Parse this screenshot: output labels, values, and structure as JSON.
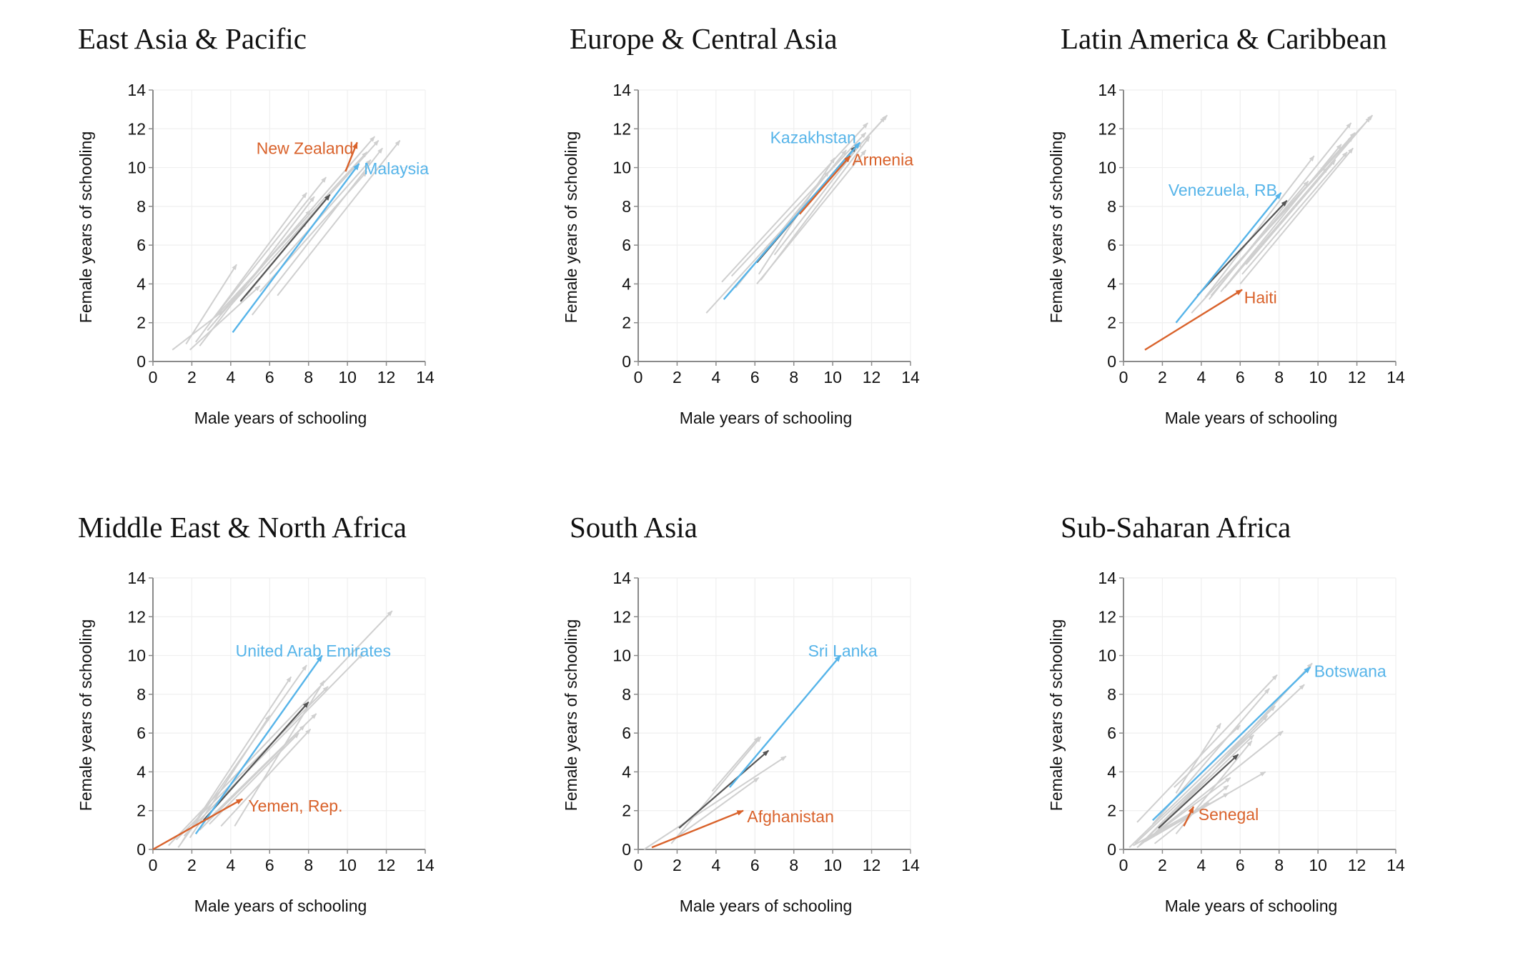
{
  "colors": {
    "background": "#ffffff",
    "other_countries": "#cfcfcf",
    "region_average": "#555555",
    "highlight_best": "#56B4E9",
    "highlight_worst": "#D9622B",
    "grid": "#efefef",
    "axis": "#8a8a8a"
  },
  "chart_data": [
    {
      "type": "arrow",
      "title": "East Asia & Pacific",
      "xlabel": "Male years of schooling",
      "ylabel": "Female years of schooling",
      "xlim": [
        0,
        14
      ],
      "ylim": [
        0,
        14
      ],
      "xticks": [
        "0",
        "2",
        "4",
        "6",
        "8",
        "10",
        "12",
        "14"
      ],
      "yticks": [
        "0",
        "2",
        "4",
        "6",
        "8",
        "10",
        "12",
        "14"
      ],
      "grid": true,
      "region_average": {
        "from": [
          4.5,
          3.1
        ],
        "to": [
          9.1,
          8.6
        ]
      },
      "highlights": [
        {
          "name": "New Zealand",
          "role": "worst",
          "from": [
            9.9,
            9.8
          ],
          "to": [
            10.5,
            11.3
          ],
          "label_anchor": "end",
          "label_at": [
            10.3,
            11.0
          ]
        },
        {
          "name": "Malaysia",
          "role": "best",
          "from": [
            4.1,
            1.5
          ],
          "to": [
            10.6,
            10.2
          ],
          "label_anchor": "start",
          "label_at": [
            10.85,
            9.95
          ]
        }
      ],
      "others": [
        [
          [
            1.0,
            0.6
          ],
          [
            3.6,
            2.6
          ]
        ],
        [
          [
            1.7,
            0.9
          ],
          [
            4.3,
            5.0
          ]
        ],
        [
          [
            1.9,
            0.6
          ],
          [
            5.5,
            3.9
          ]
        ],
        [
          [
            2.2,
            1.0
          ],
          [
            7.9,
            8.7
          ]
        ],
        [
          [
            2.4,
            0.8
          ],
          [
            8.3,
            8.5
          ]
        ],
        [
          [
            3.0,
            2.1
          ],
          [
            8.9,
            9.5
          ]
        ],
        [
          [
            3.3,
            2.4
          ],
          [
            11.0,
            10.8
          ]
        ],
        [
          [
            3.6,
            2.6
          ],
          [
            11.4,
            11.6
          ]
        ],
        [
          [
            4.0,
            2.9
          ],
          [
            11.6,
            11.4
          ]
        ],
        [
          [
            5.1,
            2.4
          ],
          [
            11.8,
            11.0
          ]
        ],
        [
          [
            6.4,
            3.4
          ],
          [
            12.7,
            11.4
          ]
        ],
        [
          [
            5.5,
            3.6
          ],
          [
            11.0,
            9.8
          ]
        ],
        [
          [
            4.8,
            3.4
          ],
          [
            7.9,
            7.2
          ]
        ],
        [
          [
            6.0,
            4.5
          ],
          [
            11.2,
            10.4
          ]
        ],
        [
          [
            2.8,
            1.6
          ],
          [
            8.1,
            7.8
          ]
        ]
      ]
    },
    {
      "type": "arrow",
      "title": "Europe & Central Asia",
      "xlabel": "Male years of schooling",
      "ylabel": "Female years of schooling",
      "xlim": [
        0,
        14
      ],
      "ylim": [
        0,
        14
      ],
      "xticks": [
        "0",
        "2",
        "4",
        "6",
        "8",
        "10",
        "12",
        "14"
      ],
      "yticks": [
        "0",
        "2",
        "4",
        "6",
        "8",
        "10",
        "12",
        "14"
      ],
      "grid": true,
      "region_average": {
        "from": [
          6.1,
          5.1
        ],
        "to": [
          11.2,
          11.1
        ]
      },
      "highlights": [
        {
          "name": "Kazakhstan",
          "role": "best",
          "from": [
            4.4,
            3.2
          ],
          "to": [
            11.4,
            11.3
          ],
          "label_anchor": "end",
          "label_at": [
            11.2,
            11.55
          ]
        },
        {
          "name": "Armenia",
          "role": "worst",
          "from": [
            8.3,
            7.6
          ],
          "to": [
            10.9,
            10.6
          ],
          "label_anchor": "start",
          "label_at": [
            11.0,
            10.4
          ]
        }
      ],
      "others": [
        [
          [
            3.5,
            2.5
          ],
          [
            12.8,
            12.7
          ]
        ],
        [
          [
            4.3,
            4.1
          ],
          [
            11.8,
            12.3
          ]
        ],
        [
          [
            4.8,
            4.4
          ],
          [
            11.7,
            11.8
          ]
        ],
        [
          [
            6.1,
            4.0
          ],
          [
            11.7,
            10.9
          ]
        ],
        [
          [
            6.2,
            4.5
          ],
          [
            10.1,
            10.5
          ]
        ],
        [
          [
            6.5,
            5.8
          ],
          [
            12.7,
            12.6
          ]
        ],
        [
          [
            5.0,
            3.8
          ],
          [
            10.7,
            10.9
          ]
        ],
        [
          [
            7.0,
            5.5
          ],
          [
            11.5,
            11.3
          ]
        ],
        [
          [
            8.0,
            7.5
          ],
          [
            9.8,
            9.8
          ]
        ],
        [
          [
            6.3,
            4.2
          ],
          [
            11.9,
            11.6
          ]
        ]
      ]
    },
    {
      "type": "arrow",
      "title": "Latin America & Caribbean",
      "xlabel": "Male years of schooling",
      "ylabel": "Female years of schooling",
      "xlim": [
        0,
        14
      ],
      "ylim": [
        0,
        14
      ],
      "xticks": [
        "0",
        "2",
        "4",
        "6",
        "8",
        "10",
        "12",
        "14"
      ],
      "yticks": [
        "0",
        "2",
        "4",
        "6",
        "8",
        "10",
        "12",
        "14"
      ],
      "grid": true,
      "region_average": {
        "from": [
          3.8,
          3.4
        ],
        "to": [
          8.4,
          8.3
        ]
      },
      "highlights": [
        {
          "name": "Venezuela, RB",
          "role": "best",
          "from": [
            2.7,
            2.0
          ],
          "to": [
            8.1,
            8.7
          ],
          "label_anchor": "end",
          "label_at": [
            7.9,
            8.85
          ]
        },
        {
          "name": "Haiti",
          "role": "worst",
          "from": [
            1.1,
            0.6
          ],
          "to": [
            6.1,
            3.7
          ],
          "label_anchor": "start",
          "label_at": [
            6.2,
            3.3
          ]
        }
      ],
      "others": [
        [
          [
            3.5,
            2.5
          ],
          [
            12.8,
            12.7
          ]
        ],
        [
          [
            4.4,
            3.2
          ],
          [
            11.7,
            12.3
          ]
        ],
        [
          [
            6.0,
            4.0
          ],
          [
            11.8,
            11.0
          ]
        ],
        [
          [
            6.1,
            4.5
          ],
          [
            11.5,
            10.8
          ]
        ],
        [
          [
            4.2,
            3.3
          ],
          [
            9.8,
            10.6
          ]
        ],
        [
          [
            5.2,
            3.8
          ],
          [
            12.7,
            12.6
          ]
        ],
        [
          [
            4.8,
            3.9
          ],
          [
            11.9,
            11.8
          ]
        ],
        [
          [
            5.5,
            4.2
          ],
          [
            11.2,
            11.2
          ]
        ],
        [
          [
            6.3,
            5.0
          ],
          [
            10.9,
            10.4
          ]
        ],
        [
          [
            5.0,
            3.6
          ],
          [
            10.5,
            10.0
          ]
        ],
        [
          [
            6.5,
            5.8
          ],
          [
            11.8,
            11.6
          ]
        ],
        [
          [
            4.5,
            3.4
          ],
          [
            9.5,
            9.3
          ]
        ]
      ]
    },
    {
      "type": "arrow",
      "title": "Middle East & North Africa",
      "xlabel": "Male years of schooling",
      "ylabel": "Female years of schooling",
      "xlim": [
        0,
        14
      ],
      "ylim": [
        0,
        14
      ],
      "xticks": [
        "0",
        "2",
        "4",
        "6",
        "8",
        "10",
        "12",
        "14"
      ],
      "yticks": [
        "0",
        "2",
        "4",
        "6",
        "8",
        "10",
        "12",
        "14"
      ],
      "grid": true,
      "region_average": {
        "from": [
          2.6,
          1.5
        ],
        "to": [
          8.0,
          7.6
        ]
      },
      "highlights": [
        {
          "name": "United Arab Emirates",
          "role": "best",
          "from": [
            2.2,
            0.8
          ],
          "to": [
            8.7,
            10.0
          ],
          "label_anchor": "start",
          "label_at": [
            4.25,
            10.25
          ]
        },
        {
          "name": "Yemen, Rep.",
          "role": "worst",
          "from": [
            0.0,
            0.0
          ],
          "to": [
            4.6,
            2.6
          ],
          "label_anchor": "start",
          "label_at": [
            4.9,
            2.25
          ]
        }
      ],
      "others": [
        [
          [
            0.8,
            0.2
          ],
          [
            12.3,
            12.3
          ]
        ],
        [
          [
            1.3,
            0.1
          ],
          [
            7.9,
            9.5
          ]
        ],
        [
          [
            1.9,
            0.6
          ],
          [
            6.0,
            6.9
          ]
        ],
        [
          [
            1.5,
            0.4
          ],
          [
            7.1,
            8.9
          ]
        ],
        [
          [
            3.5,
            1.2
          ],
          [
            8.1,
            6.2
          ]
        ],
        [
          [
            4.2,
            1.2
          ],
          [
            8.8,
            8.7
          ]
        ],
        [
          [
            2.4,
            1.0
          ],
          [
            7.8,
            6.4
          ]
        ],
        [
          [
            2.9,
            1.3
          ],
          [
            7.5,
            6.0
          ]
        ],
        [
          [
            1.2,
            0.5
          ],
          [
            9.0,
            8.4
          ]
        ],
        [
          [
            1.6,
            0.7
          ],
          [
            10.8,
            10.1
          ]
        ],
        [
          [
            2.8,
            1.5
          ],
          [
            8.4,
            7.0
          ]
        ]
      ]
    },
    {
      "type": "arrow",
      "title": "South Asia",
      "xlabel": "Male years of schooling",
      "ylabel": "Female years of schooling",
      "xlim": [
        0,
        14
      ],
      "ylim": [
        0,
        14
      ],
      "xticks": [
        "0",
        "2",
        "4",
        "6",
        "8",
        "10",
        "12",
        "14"
      ],
      "yticks": [
        "0",
        "2",
        "4",
        "6",
        "8",
        "10",
        "12",
        "14"
      ],
      "grid": true,
      "region_average": {
        "from": [
          2.1,
          1.1
        ],
        "to": [
          6.7,
          5.1
        ]
      },
      "highlights": [
        {
          "name": "Sri Lanka",
          "role": "best",
          "from": [
            4.7,
            3.2
          ],
          "to": [
            10.4,
            10.0
          ],
          "label_anchor": "end",
          "label_at": [
            12.3,
            10.25
          ]
        },
        {
          "name": "Afghanistan",
          "role": "worst",
          "from": [
            0.7,
            0.1
          ],
          "to": [
            5.4,
            2.0
          ],
          "label_anchor": "start",
          "label_at": [
            5.6,
            1.7
          ]
        }
      ],
      "others": [
        [
          [
            0.3,
            0.0
          ],
          [
            7.6,
            4.8
          ]
        ],
        [
          [
            1.7,
            0.3
          ],
          [
            6.3,
            5.8
          ]
        ],
        [
          [
            3.8,
            3.0
          ],
          [
            6.2,
            5.8
          ]
        ],
        [
          [
            1.8,
            0.5
          ],
          [
            6.2,
            3.7
          ]
        ]
      ]
    },
    {
      "type": "arrow",
      "title": "Sub-Saharan Africa",
      "xlabel": "Male years of schooling",
      "ylabel": "Female years of schooling",
      "xlim": [
        0,
        14
      ],
      "ylim": [
        0,
        14
      ],
      "xticks": [
        "0",
        "2",
        "4",
        "6",
        "8",
        "10",
        "12",
        "14"
      ],
      "yticks": [
        "0",
        "2",
        "4",
        "6",
        "8",
        "10",
        "12",
        "14"
      ],
      "grid": true,
      "region_average": {
        "from": [
          1.8,
          1.1
        ],
        "to": [
          5.9,
          4.9
        ]
      },
      "highlights": [
        {
          "name": "Botswana",
          "role": "best",
          "from": [
            1.5,
            1.5
          ],
          "to": [
            9.6,
            9.4
          ],
          "label_anchor": "start",
          "label_at": [
            9.8,
            9.2
          ]
        },
        {
          "name": "Senegal",
          "role": "worst",
          "from": [
            3.1,
            1.2
          ],
          "to": [
            3.6,
            2.2
          ],
          "label_anchor": "start",
          "label_at": [
            3.85,
            1.8
          ]
        }
      ],
      "others": [
        [
          [
            0.7,
            1.4
          ],
          [
            7.9,
            9.0
          ]
        ],
        [
          [
            1.5,
            1.3
          ],
          [
            7.5,
            8.3
          ]
        ],
        [
          [
            2.7,
            2.9
          ],
          [
            5.0,
            6.5
          ]
        ],
        [
          [
            2.6,
            3.2
          ],
          [
            6.0,
            6.4
          ]
        ],
        [
          [
            0.6,
            0.3
          ],
          [
            9.3,
            8.5
          ]
        ],
        [
          [
            0.3,
            0.1
          ],
          [
            7.8,
            7.4
          ]
        ],
        [
          [
            0.8,
            0.2
          ],
          [
            7.4,
            6.9
          ]
        ],
        [
          [
            0.7,
            0.1
          ],
          [
            8.2,
            6.1
          ]
        ],
        [
          [
            1.1,
            0.4
          ],
          [
            7.3,
            4.0
          ]
        ],
        [
          [
            0.9,
            0.3
          ],
          [
            6.7,
            5.9
          ]
        ],
        [
          [
            1.6,
            0.3
          ],
          [
            5.4,
            3.3
          ]
        ],
        [
          [
            1.2,
            0.5
          ],
          [
            5.5,
            3.7
          ]
        ],
        [
          [
            2.7,
            0.8
          ],
          [
            6.6,
            5.6
          ]
        ],
        [
          [
            1.0,
            0.4
          ],
          [
            5.4,
            2.9
          ]
        ],
        [
          [
            1.4,
            0.6
          ],
          [
            9.7,
            9.6
          ]
        ],
        [
          [
            0.5,
            0.2
          ],
          [
            4.4,
            2.4
          ]
        ]
      ]
    }
  ]
}
